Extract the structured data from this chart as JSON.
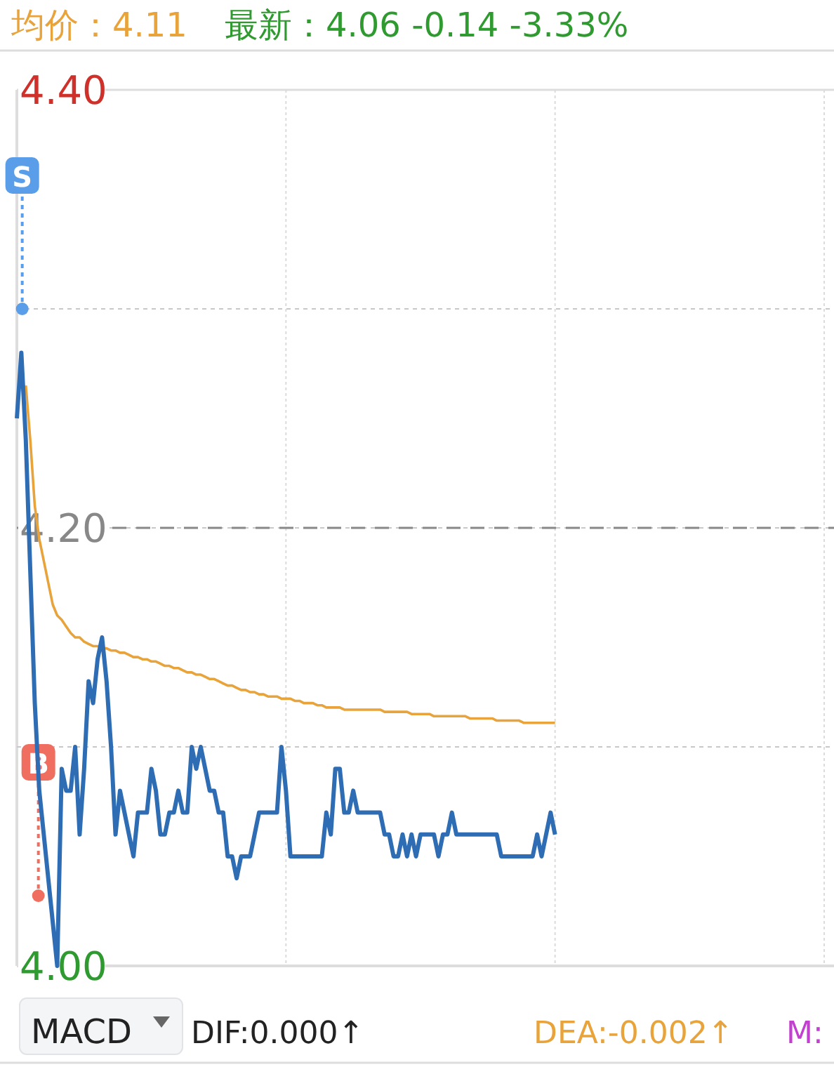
{
  "chart_data": {
    "type": "line",
    "categories": [
      null,
      null,
      null,
      null,
      null,
      null,
      null,
      null,
      null,
      null,
      null,
      null,
      null,
      null,
      null,
      null,
      null,
      null,
      null,
      null,
      null,
      null,
      null,
      null,
      null,
      null,
      null,
      null,
      null,
      null,
      null,
      null,
      null,
      null,
      null,
      null,
      null,
      null,
      null,
      null,
      null,
      null,
      null,
      null,
      null,
      null,
      null,
      null,
      null,
      null,
      null,
      null,
      null,
      null,
      null,
      null,
      null,
      null,
      null,
      null,
      null,
      null,
      null,
      null,
      null,
      null,
      null,
      null,
      null,
      null,
      null,
      null,
      null,
      null,
      null,
      null,
      null,
      null,
      null,
      null,
      null,
      null,
      null,
      null,
      null,
      null,
      null,
      null,
      null,
      null,
      null,
      null,
      null,
      null,
      null,
      null,
      null,
      null,
      null,
      null,
      null,
      null,
      null,
      null,
      null,
      null,
      null,
      null,
      null,
      null,
      null,
      null,
      null,
      null,
      null,
      null,
      null,
      null,
      null,
      null,
      null,
      null,
      null,
      null,
      null,
      null,
      null,
      null,
      null,
      null,
      null,
      null,
      null,
      null,
      null,
      null,
      null,
      null,
      null,
      null,
      null,
      null,
      null,
      null,
      null,
      null,
      null,
      null,
      null,
      null,
      null,
      null,
      null,
      null,
      null,
      null,
      null,
      null,
      null,
      null,
      null,
      null,
      null,
      null,
      null,
      null,
      null,
      null,
      null,
      null,
      null,
      null,
      null,
      null,
      null,
      null,
      null,
      null,
      null,
      null,
      null
    ],
    "series": [
      {
        "color": "#e8a33a",
        "values": [
          null,
          null,
          4.265,
          4.24,
          4.21,
          4.195,
          4.185,
          4.175,
          4.165,
          4.16,
          4.158,
          4.155,
          4.152,
          4.15,
          4.15,
          4.148,
          4.147,
          4.146,
          4.146,
          4.145,
          4.145,
          4.144,
          4.144,
          4.143,
          4.143,
          4.142,
          4.141,
          4.141,
          4.14,
          4.14,
          4.139,
          4.139,
          4.138,
          4.137,
          4.137,
          4.136,
          4.136,
          4.135,
          4.134,
          4.134,
          4.133,
          4.133,
          4.132,
          4.131,
          4.131,
          4.13,
          4.129,
          4.128,
          4.128,
          4.127,
          4.126,
          4.126,
          4.125,
          4.125,
          4.124,
          4.124,
          4.123,
          4.123,
          4.123,
          4.122,
          4.122,
          4.122,
          4.121,
          4.121,
          4.12,
          4.12,
          4.12,
          4.119,
          4.119,
          4.118,
          4.118,
          4.118,
          4.118,
          4.117,
          4.117,
          4.117,
          4.117,
          4.117,
          4.117,
          4.117,
          4.117,
          4.117,
          4.116,
          4.116,
          4.116,
          4.116,
          4.116,
          4.116,
          4.115,
          4.115,
          4.115,
          4.115,
          4.115,
          4.114,
          4.114,
          4.114,
          4.114,
          4.114,
          4.114,
          4.114,
          4.114,
          4.113,
          4.113,
          4.113,
          4.113,
          4.113,
          4.113,
          4.112,
          4.112,
          4.112,
          4.112,
          4.112,
          4.112,
          4.111,
          4.111,
          4.111,
          4.111,
          4.111,
          4.111,
          4.111,
          4.111,
          null,
          null,
          null,
          null,
          null,
          null,
          null,
          null,
          null,
          null,
          null,
          null,
          null,
          null,
          null,
          null,
          null,
          null,
          null,
          null,
          null,
          null,
          null,
          null,
          null,
          null,
          null,
          null,
          null,
          null,
          null,
          null,
          null,
          null,
          null,
          null,
          null,
          null,
          null,
          null,
          null,
          null,
          null,
          null,
          null,
          null,
          null,
          null,
          null,
          null,
          null,
          null,
          null,
          null,
          null,
          null,
          null,
          null,
          null,
          null
        ]
      },
      {
        "color": "#2e6db4",
        "values": [
          4.25,
          4.28,
          4.24,
          4.18,
          4.12,
          4.08,
          4.06,
          4.04,
          4.02,
          4.0,
          4.09,
          4.08,
          4.08,
          4.1,
          4.06,
          4.09,
          4.13,
          4.12,
          4.14,
          4.15,
          4.13,
          4.1,
          4.06,
          4.08,
          4.07,
          4.06,
          4.05,
          4.07,
          4.07,
          4.07,
          4.09,
          4.08,
          4.06,
          4.06,
          4.07,
          4.07,
          4.08,
          4.07,
          4.07,
          4.1,
          4.09,
          4.1,
          4.09,
          4.08,
          4.08,
          4.07,
          4.07,
          4.05,
          4.05,
          4.04,
          4.05,
          4.05,
          4.05,
          4.06,
          4.07,
          4.07,
          4.07,
          4.07,
          4.07,
          4.1,
          4.08,
          4.05,
          4.05,
          4.05,
          4.05,
          4.05,
          4.05,
          4.05,
          4.05,
          4.07,
          4.06,
          4.09,
          4.09,
          4.07,
          4.07,
          4.08,
          4.07,
          4.07,
          4.07,
          4.07,
          4.07,
          4.07,
          4.06,
          4.06,
          4.05,
          4.05,
          4.06,
          4.05,
          4.06,
          4.05,
          4.06,
          4.06,
          4.06,
          4.06,
          4.05,
          4.06,
          4.06,
          4.07,
          4.06,
          4.06,
          4.06,
          4.06,
          4.06,
          4.06,
          4.06,
          4.06,
          4.06,
          4.06,
          4.05,
          4.05,
          4.05,
          4.05,
          4.05,
          4.05,
          4.05,
          4.05,
          4.06,
          4.05,
          4.06,
          4.07,
          4.06,
          null,
          null,
          null,
          null,
          null,
          null,
          null,
          null,
          null,
          null,
          null,
          null,
          null,
          null,
          null,
          null,
          null,
          null,
          null,
          null,
          null,
          null,
          null,
          null,
          null,
          null,
          null,
          null,
          null,
          null,
          null,
          null,
          null,
          null,
          null,
          null,
          null,
          null,
          null,
          null,
          null,
          null,
          null,
          null,
          null,
          null,
          null,
          null,
          null,
          null,
          null,
          null,
          null,
          null,
          null,
          null,
          null,
          null,
          null,
          null
        ]
      }
    ],
    "ylim": [
      4.0,
      4.4
    ],
    "yticks": [
      {
        "value": 4.4,
        "label": "4.40"
      },
      {
        "value": 4.3,
        "label": null
      },
      {
        "value": 4.2,
        "label": "4.20"
      },
      {
        "value": 4.1,
        "label": null
      },
      {
        "value": 4.0,
        "label": "4.00"
      }
    ],
    "grid": true,
    "tick_labels": "y",
    "ref_lines": [
      {
        "axis": "y",
        "value": 4.2,
        "color": "#888888",
        "line_style": "dashed"
      }
    ],
    "annotations": [
      "均价：4.11",
      "最新：4.06   -0.14   -3.33%",
      "S",
      "B",
      "MACD",
      "DIF:0.000↑",
      "DEA:-0.002↑",
      "M:"
    ]
  }
}
